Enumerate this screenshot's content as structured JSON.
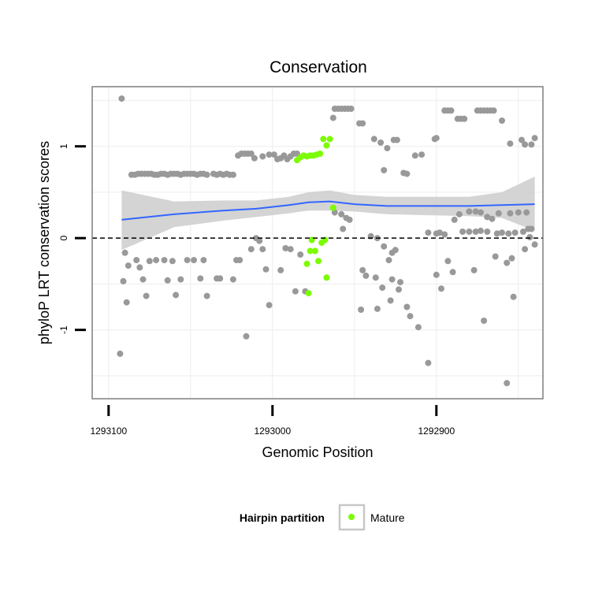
{
  "chart_data": {
    "type": "scatter",
    "title": "Conservation",
    "xlabel": "Genomic Position",
    "ylabel": "phyloP LRT conservation scores",
    "x_reversed": true,
    "xlim": [
      1293110,
      1292835
    ],
    "ylim": [
      -1.75,
      1.65
    ],
    "x_ticks": [
      {
        "value": 1293100,
        "label": "1293100"
      },
      {
        "value": 1293000,
        "label": "1293000"
      },
      {
        "value": 1292900,
        "label": "1292900"
      }
    ],
    "y_ticks": [
      {
        "value": -1,
        "label": "-1"
      },
      {
        "value": 0,
        "label": "0"
      },
      {
        "value": 1,
        "label": "1"
      }
    ],
    "reference_line": {
      "y": 0,
      "style": "dashed"
    },
    "grid": true,
    "legend": {
      "title": "Hairpin partition",
      "position": "bottom",
      "entries": [
        {
          "label": "Mature",
          "color": "#7CFC00"
        }
      ]
    },
    "colors": {
      "points_other": "#999999",
      "points_mature": "#7CFC00",
      "smooth_line": "#3366FF",
      "ribbon": "#cccccc",
      "panel_border": "#7f7f7f"
    },
    "series": [
      {
        "name": "",
        "color": "#999999",
        "points": [
          [
            1293092,
            1.52
          ],
          [
            1293093,
            -1.26
          ],
          [
            1293091,
            -0.47
          ],
          [
            1293090,
            -0.16
          ],
          [
            1293089,
            -0.7
          ],
          [
            1293088,
            -0.3
          ],
          [
            1293086,
            0.69
          ],
          [
            1293084,
            0.69
          ],
          [
            1293082,
            0.7
          ],
          [
            1293080,
            0.7
          ],
          [
            1293078,
            0.7
          ],
          [
            1293076,
            0.7
          ],
          [
            1293074,
            0.7
          ],
          [
            1293072,
            0.69
          ],
          [
            1293070,
            0.69
          ],
          [
            1293068,
            0.7
          ],
          [
            1293066,
            0.7
          ],
          [
            1293064,
            0.69
          ],
          [
            1293062,
            0.7
          ],
          [
            1293060,
            0.7
          ],
          [
            1293058,
            0.7
          ],
          [
            1293056,
            0.69
          ],
          [
            1293054,
            0.7
          ],
          [
            1293052,
            0.7
          ],
          [
            1293050,
            0.7
          ],
          [
            1293048,
            0.7
          ],
          [
            1293046,
            0.69
          ],
          [
            1293044,
            0.7
          ],
          [
            1293042,
            0.7
          ],
          [
            1293040,
            0.69
          ],
          [
            1293036,
            0.7
          ],
          [
            1293034,
            0.69
          ],
          [
            1293032,
            0.7
          ],
          [
            1293030,
            0.69
          ],
          [
            1293028,
            0.7
          ],
          [
            1293026,
            0.69
          ],
          [
            1293024,
            0.69
          ],
          [
            1293083,
            -0.24
          ],
          [
            1293081,
            -0.32
          ],
          [
            1293079,
            -0.45
          ],
          [
            1293077,
            -0.63
          ],
          [
            1293075,
            -0.25
          ],
          [
            1293071,
            -0.24
          ],
          [
            1293066,
            -0.24
          ],
          [
            1293064,
            -0.46
          ],
          [
            1293061,
            -0.25
          ],
          [
            1293059,
            -0.62
          ],
          [
            1293056,
            -0.45
          ],
          [
            1293052,
            -0.24
          ],
          [
            1293048,
            -0.24
          ],
          [
            1293044,
            -0.44
          ],
          [
            1293042,
            -0.24
          ],
          [
            1293040,
            -0.63
          ],
          [
            1293034,
            -0.44
          ],
          [
            1293032,
            -0.44
          ],
          [
            1293024,
            -0.45
          ],
          [
            1293022,
            -0.24
          ],
          [
            1293020,
            -0.24
          ],
          [
            1293016,
            -1.07
          ],
          [
            1293013,
            -0.12
          ],
          [
            1293010,
            0.0
          ],
          [
            1293021,
            0.9
          ],
          [
            1293019,
            0.92
          ],
          [
            1293017,
            0.92
          ],
          [
            1293015,
            0.92
          ],
          [
            1293013,
            0.92
          ],
          [
            1293011,
            0.87
          ],
          [
            1293006,
            0.89
          ],
          [
            1293002,
            0.91
          ],
          [
            1292999,
            0.91
          ],
          [
            1292997,
            0.86
          ],
          [
            1292995,
            0.87
          ],
          [
            1292993,
            0.9
          ],
          [
            1292991,
            0.86
          ],
          [
            1292989,
            0.89
          ],
          [
            1292987,
            0.92
          ],
          [
            1292985,
            0.92
          ],
          [
            1293008,
            -0.03
          ],
          [
            1293006,
            -0.12
          ],
          [
            1293004,
            -0.34
          ],
          [
            1293002,
            -0.73
          ],
          [
            1292995,
            -0.35
          ],
          [
            1292992,
            -0.11
          ],
          [
            1292989,
            -0.12
          ],
          [
            1292986,
            -0.58
          ],
          [
            1292983,
            -0.18
          ],
          [
            1292980,
            -0.58
          ],
          [
            1292962,
            1.41
          ],
          [
            1292960,
            1.41
          ],
          [
            1292958,
            1.41
          ],
          [
            1292956,
            1.41
          ],
          [
            1292954,
            1.41
          ],
          [
            1292952,
            1.41
          ],
          [
            1292963,
            1.31
          ],
          [
            1292947,
            1.25
          ],
          [
            1292945,
            1.25
          ],
          [
            1292938,
            1.08
          ],
          [
            1292934,
            1.04
          ],
          [
            1292930,
            0.98
          ],
          [
            1292926,
            1.07
          ],
          [
            1292924,
            1.07
          ],
          [
            1292932,
            0.74
          ],
          [
            1292918,
            0.7
          ],
          [
            1292920,
            0.71
          ],
          [
            1292913,
            0.9
          ],
          [
            1292909,
            0.91
          ],
          [
            1292901,
            1.08
          ],
          [
            1292900,
            1.09
          ],
          [
            1292962,
            0.28
          ],
          [
            1292958,
            0.26
          ],
          [
            1292955,
            0.22
          ],
          [
            1292953,
            0.2
          ],
          [
            1292957,
            0.1
          ],
          [
            1292940,
            0.02
          ],
          [
            1292936,
            0.0
          ],
          [
            1292932,
            -0.09
          ],
          [
            1292927,
            -0.16
          ],
          [
            1292925,
            -0.13
          ],
          [
            1292929,
            -0.24
          ],
          [
            1292945,
            -0.35
          ],
          [
            1292943,
            -0.41
          ],
          [
            1292937,
            -0.43
          ],
          [
            1292933,
            -0.54
          ],
          [
            1292927,
            -0.45
          ],
          [
            1292923,
            -0.56
          ],
          [
            1292946,
            -0.78
          ],
          [
            1292936,
            -0.77
          ],
          [
            1292928,
            -0.68
          ],
          [
            1292922,
            -0.48
          ],
          [
            1292918,
            -0.75
          ],
          [
            1292916,
            -0.85
          ],
          [
            1292911,
            -0.97
          ],
          [
            1292905,
            -1.36
          ],
          [
            1292900,
            -0.4
          ],
          [
            1292897,
            -0.55
          ],
          [
            1292893,
            -0.25
          ],
          [
            1292890,
            -0.37
          ],
          [
            1292905,
            0.06
          ],
          [
            1292900,
            0.05
          ],
          [
            1292895,
            0.04
          ],
          [
            1292898,
            0.06
          ],
          [
            1292889,
            0.2
          ],
          [
            1292886,
            0.26
          ],
          [
            1292880,
            0.29
          ],
          [
            1292876,
            0.29
          ],
          [
            1292873,
            0.28
          ],
          [
            1292869,
            0.23
          ],
          [
            1292866,
            0.21
          ],
          [
            1292884,
            0.07
          ],
          [
            1292880,
            0.07
          ],
          [
            1292876,
            0.07
          ],
          [
            1292873,
            0.08
          ],
          [
            1292869,
            0.07
          ],
          [
            1292863,
            0.05
          ],
          [
            1292860,
            0.06
          ],
          [
            1292856,
            0.05
          ],
          [
            1292852,
            0.06
          ],
          [
            1292847,
            0.07
          ],
          [
            1292844,
            0.1
          ],
          [
            1292842,
            0.1
          ],
          [
            1292862,
            0.27
          ],
          [
            1292855,
            0.27
          ],
          [
            1292850,
            0.28
          ],
          [
            1292845,
            0.28
          ],
          [
            1292843,
            0.01
          ],
          [
            1292895,
            1.39
          ],
          [
            1292893,
            1.39
          ],
          [
            1292891,
            1.39
          ],
          [
            1292887,
            1.3
          ],
          [
            1292885,
            1.3
          ],
          [
            1292883,
            1.3
          ],
          [
            1292875,
            1.39
          ],
          [
            1292873,
            1.39
          ],
          [
            1292871,
            1.39
          ],
          [
            1292869,
            1.39
          ],
          [
            1292867,
            1.39
          ],
          [
            1292865,
            1.39
          ],
          [
            1292860,
            1.28
          ],
          [
            1292855,
            1.03
          ],
          [
            1292848,
            1.07
          ],
          [
            1292846,
            1.02
          ],
          [
            1292842,
            1.02
          ],
          [
            1292840,
            1.09
          ],
          [
            1292877,
            -0.35
          ],
          [
            1292864,
            -0.2
          ],
          [
            1292857,
            -0.27
          ],
          [
            1292854,
            -0.22
          ],
          [
            1292846,
            -0.12
          ],
          [
            1292840,
            -0.07
          ],
          [
            1292871,
            -0.9
          ],
          [
            1292853,
            -0.64
          ],
          [
            1292857,
            -1.58
          ]
        ]
      },
      {
        "name": "Mature",
        "color": "#7CFC00",
        "points": [
          [
            1292985,
            0.85
          ],
          [
            1292983,
            0.88
          ],
          [
            1292981,
            0.9
          ],
          [
            1292979,
            0.89
          ],
          [
            1292977,
            0.9
          ],
          [
            1292975,
            0.9
          ],
          [
            1292973,
            0.91
          ],
          [
            1292971,
            0.92
          ],
          [
            1292969,
            1.08
          ],
          [
            1292967,
            1.01
          ],
          [
            1292965,
            1.08
          ],
          [
            1292963,
            0.33
          ],
          [
            1292979,
            -0.28
          ],
          [
            1292977,
            -0.14
          ],
          [
            1292976,
            -0.02
          ],
          [
            1292974,
            -0.14
          ],
          [
            1292972,
            -0.25
          ],
          [
            1292970,
            -0.05
          ],
          [
            1292968,
            -0.02
          ],
          [
            1292967,
            -0.43
          ],
          [
            1292978,
            -0.6
          ]
        ]
      }
    ],
    "smooth": {
      "name": "",
      "color": "#3366FF",
      "x": [
        1293092,
        1293060,
        1293030,
        1293010,
        1292990,
        1292978,
        1292965,
        1292950,
        1292930,
        1292905,
        1292880,
        1292860,
        1292840
      ],
      "y": [
        0.2,
        0.26,
        0.3,
        0.32,
        0.36,
        0.39,
        0.4,
        0.37,
        0.35,
        0.35,
        0.35,
        0.36,
        0.37
      ],
      "lower": [
        -0.13,
        0.12,
        0.19,
        0.23,
        0.27,
        0.3,
        0.3,
        0.29,
        0.26,
        0.25,
        0.24,
        0.22,
        0.08
      ],
      "upper": [
        0.52,
        0.4,
        0.41,
        0.41,
        0.45,
        0.5,
        0.52,
        0.47,
        0.45,
        0.45,
        0.45,
        0.5,
        0.67
      ]
    }
  }
}
